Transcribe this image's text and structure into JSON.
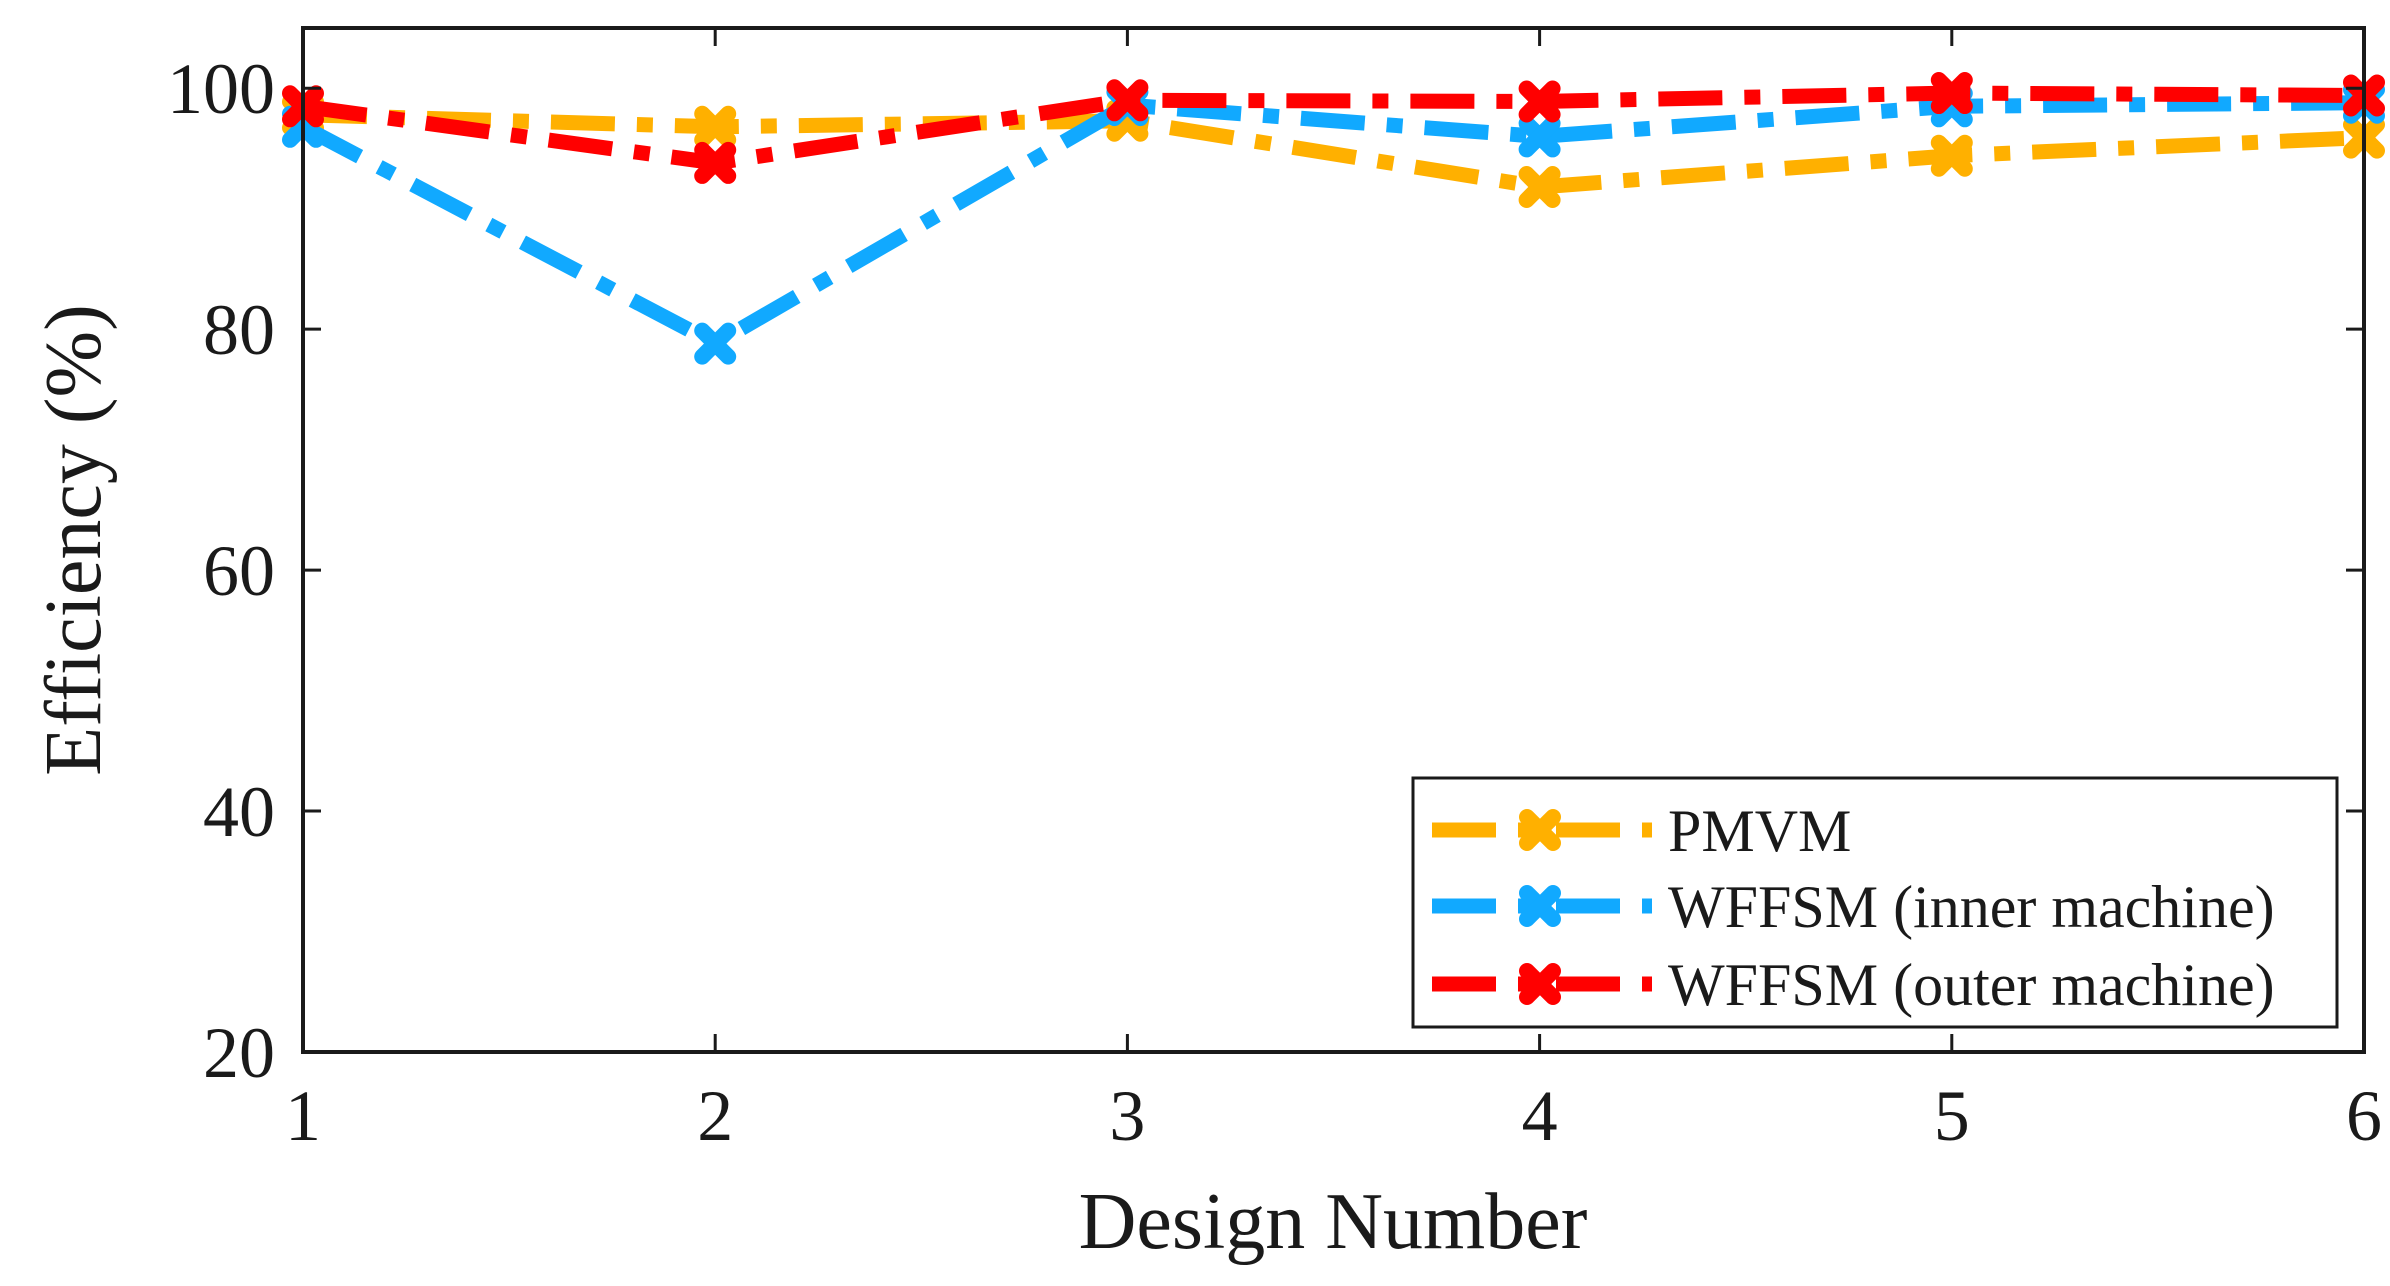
{
  "chart_data": {
    "type": "line",
    "title": "",
    "xlabel": "Design Number",
    "ylabel": "Efficiency (%)",
    "x": [
      1,
      2,
      3,
      4,
      5,
      6
    ],
    "xlim": [
      1,
      6
    ],
    "ylim": [
      20,
      105
    ],
    "xticks": [
      "1",
      "2",
      "3",
      "4",
      "5",
      "6"
    ],
    "yticks": [
      "20",
      "40",
      "60",
      "80",
      "100"
    ],
    "grid": false,
    "legend_position": "bottom-right",
    "series": [
      {
        "name": "PMVM",
        "color": "#FFB000",
        "values": [
          97.8,
          96.8,
          97.3,
          91.8,
          94.4,
          95.9
        ]
      },
      {
        "name": "WFFSM (inner machine)",
        "color": "#11A9FF",
        "values": [
          96.8,
          78.8,
          98.6,
          96.0,
          98.5,
          98.8
        ]
      },
      {
        "name": "WFFSM (outer machine)",
        "color": "#FF0000",
        "values": [
          98.5,
          93.8,
          99.0,
          98.9,
          99.6,
          99.4
        ]
      }
    ]
  }
}
